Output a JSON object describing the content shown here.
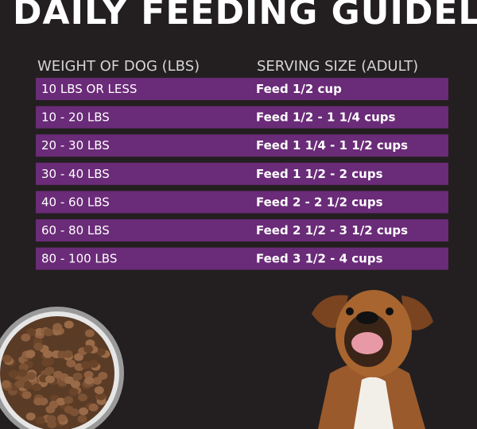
{
  "header": {
    "title": "DAILY FEEDING GUIDELINES"
  },
  "table": {
    "columns": [
      "WEIGHT OF DOG (LBS)",
      "SERVING SIZE (ADULT)"
    ],
    "rows": [
      [
        "10 LBS OR LESS",
        "Feed 1/2 cup"
      ],
      [
        "10 - 20 LBS",
        "Feed 1/2 - 1 1/4 cups"
      ],
      [
        "20 - 30 LBS",
        "Feed 1 1/4 - 1 1/2 cups"
      ],
      [
        "30 - 40 LBS",
        "Feed 1 1/2 - 2 cups"
      ],
      [
        "40 - 60 LBS",
        "Feed 2 - 2 1/2 cups"
      ],
      [
        "60 - 80 LBS",
        "Feed 2 1/2 - 3 1/2 cups"
      ],
      [
        "80 - 100 LBS",
        "Feed 3 1/2 - 4 cups"
      ]
    ]
  }
}
